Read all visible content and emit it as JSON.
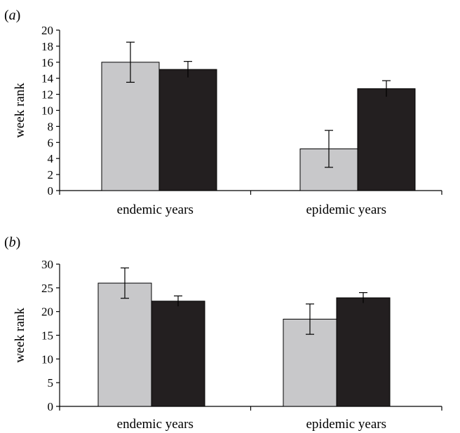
{
  "chart_data": [
    {
      "type": "bar",
      "panel_label": "a",
      "ylabel": "week rank",
      "xlabel": "",
      "ylim": [
        0,
        20
      ],
      "yticks": [
        0,
        2,
        4,
        6,
        8,
        10,
        12,
        14,
        16,
        18,
        20
      ],
      "categories": [
        "endemic years",
        "epidemic years"
      ],
      "series": [
        {
          "color": "#c8c8ca",
          "values": [
            16.0,
            5.2
          ],
          "errors": [
            2.5,
            2.3
          ]
        },
        {
          "color": "#231f20",
          "values": [
            15.1,
            12.7
          ],
          "errors": [
            1.0,
            1.0
          ]
        }
      ],
      "grid": false,
      "legend": "none"
    },
    {
      "type": "bar",
      "panel_label": "b",
      "ylabel": "week rank",
      "xlabel": "",
      "ylim": [
        0,
        30
      ],
      "yticks": [
        0,
        5,
        10,
        15,
        20,
        25,
        30
      ],
      "categories": [
        "endemic years",
        "epidemic years"
      ],
      "series": [
        {
          "color": "#c8c8ca",
          "values": [
            26.0,
            18.4
          ],
          "errors": [
            3.2,
            3.2
          ]
        },
        {
          "color": "#231f20",
          "values": [
            22.2,
            22.9
          ],
          "errors": [
            1.1,
            1.1
          ]
        }
      ],
      "grid": false,
      "legend": "none"
    }
  ]
}
